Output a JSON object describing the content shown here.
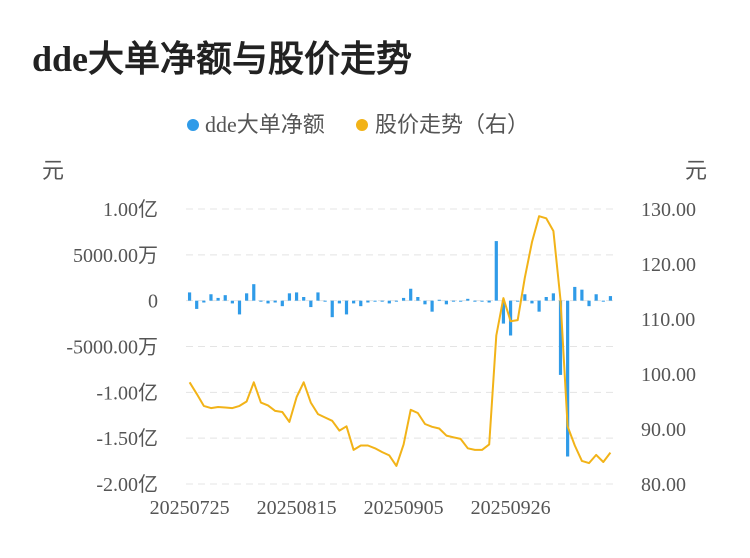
{
  "title": "dde大单净额与股价走势",
  "chart_data": {
    "type": "bar+line",
    "legend": [
      {
        "name": "dde大单净额",
        "color": "#2f9be8"
      },
      {
        "name": "股价走势（右）",
        "color": "#f2b318"
      }
    ],
    "left_axis": {
      "unit": "元",
      "range": [
        -200000000,
        100000000
      ],
      "ticks": [
        100000000,
        50000000,
        0,
        -50000000,
        -100000000,
        -150000000,
        -200000000
      ],
      "tick_labels": [
        "1.00亿",
        "5000.00万",
        "0",
        "-5000.00万",
        "-1.00亿",
        "-1.50亿",
        "-2.00亿"
      ]
    },
    "right_axis": {
      "unit": "元",
      "range": [
        80,
        130
      ],
      "ticks": [
        130,
        120,
        110,
        100,
        90,
        80
      ],
      "tick_labels": [
        "130.00",
        "120.00",
        "110.00",
        "100.00",
        "90.00",
        "80.00"
      ]
    },
    "x_tick_labels": [
      {
        "index": 0,
        "label": "20250725"
      },
      {
        "index": 15,
        "label": "20250815"
      },
      {
        "index": 30,
        "label": "20250905"
      },
      {
        "index": 45,
        "label": "20250926"
      }
    ],
    "bar_values": [
      9000000,
      -9000000,
      -2000000,
      7000000,
      3000000,
      6000000,
      -3000000,
      -15000000,
      8000000,
      18000000,
      0,
      -3000000,
      -2000000,
      -6000000,
      8000000,
      9000000,
      4000000,
      -7000000,
      9000000,
      0,
      -18000000,
      -3000000,
      -15000000,
      -3000000,
      -6000000,
      -2000000,
      -1000000,
      0,
      -3000000,
      -1000000,
      3000000,
      13000000,
      4000000,
      -4000000,
      -12000000,
      1000000,
      -4000000,
      -1000000,
      0,
      2000000,
      0,
      -1000000,
      -2000000,
      65000000,
      -25000000,
      -38000000,
      0,
      7000000,
      -3000000,
      -12000000,
      4000000,
      8000000,
      -81000000,
      -170000000,
      15000000,
      12000000,
      -6000000,
      7000000,
      -1000000,
      5000000
    ],
    "line_values": [
      98.5,
      96.4,
      94.2,
      93.8,
      94.0,
      93.9,
      93.8,
      94.2,
      95.0,
      98.5,
      94.8,
      94.3,
      93.3,
      93.1,
      91.3,
      95.8,
      98.5,
      94.8,
      92.7,
      92.1,
      91.5,
      89.7,
      90.5,
      86.2,
      87.0,
      87.0,
      86.5,
      85.8,
      85.2,
      83.3,
      87.2,
      93.5,
      92.9,
      90.9,
      90.4,
      90.1,
      88.8,
      88.5,
      88.2,
      86.5,
      86.2,
      86.2,
      87.2,
      107.0,
      113.8,
      109.6,
      109.8,
      117.5,
      124.0,
      128.7,
      128.3,
      126.0,
      113.5,
      90.5,
      87.0,
      84.2,
      83.8,
      85.3,
      84.0,
      85.7
    ]
  }
}
